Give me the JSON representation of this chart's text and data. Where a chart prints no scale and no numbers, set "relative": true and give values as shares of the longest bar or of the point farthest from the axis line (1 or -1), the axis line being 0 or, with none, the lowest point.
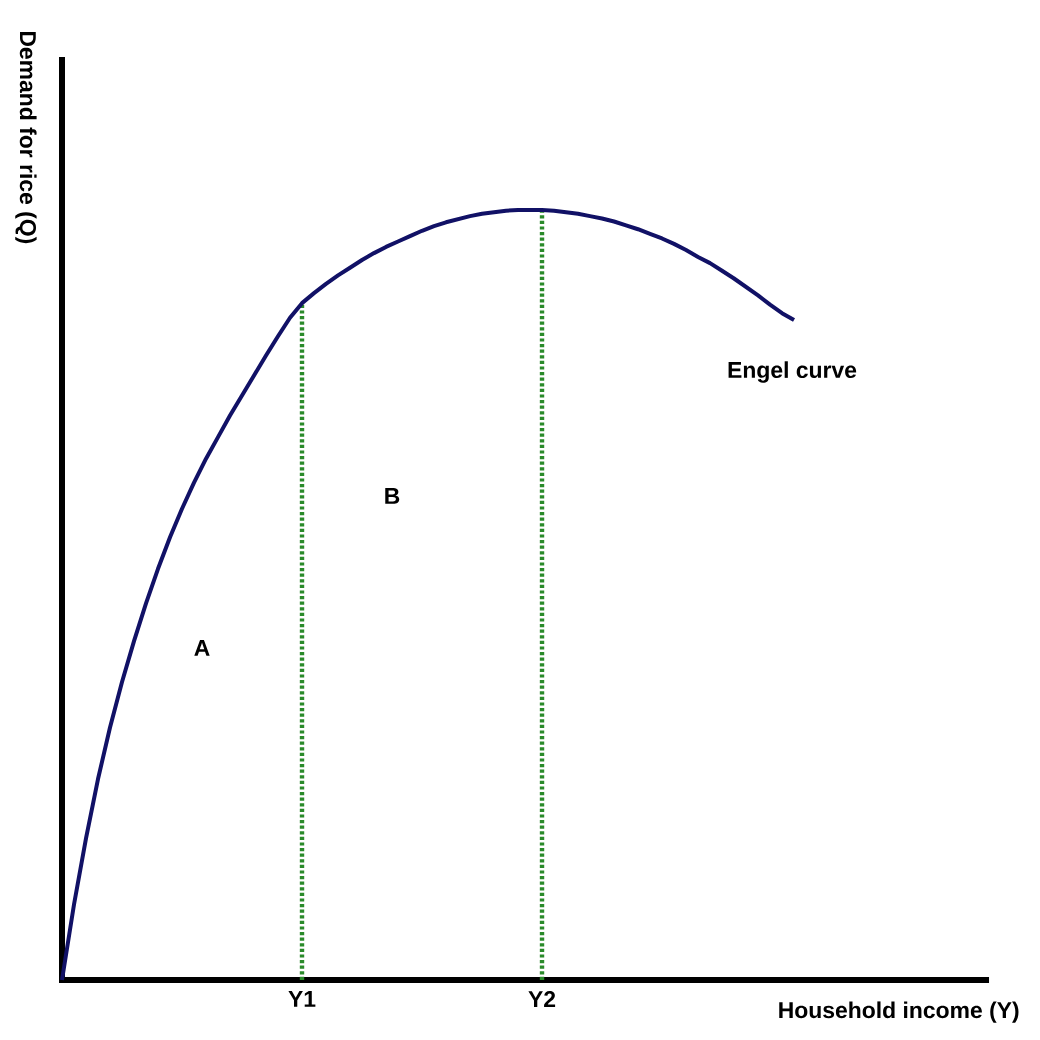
{
  "chart_data": {
    "type": "line",
    "xlabel": "Household income (Y)",
    "ylabel": "Demand for rice (Q)",
    "relative": true,
    "tick_labels": "x",
    "marker": "none",
    "line_style": "solid",
    "categories": [
      null,
      null,
      null,
      null,
      null,
      null,
      null,
      null,
      null,
      null,
      null,
      null,
      null,
      null,
      null,
      null,
      null,
      null,
      null,
      null,
      "Y1",
      null,
      null,
      null,
      null,
      null,
      null,
      null,
      null,
      null,
      null,
      null,
      null,
      null,
      null,
      null,
      null,
      null,
      null,
      null,
      "Y2",
      null,
      null,
      null,
      null,
      null,
      null,
      null,
      null,
      null,
      null,
      null,
      null,
      null,
      null,
      null,
      null,
      null,
      null,
      null,
      null,
      null,
      null,
      null,
      null,
      null,
      null,
      null,
      null,
      null,
      null,
      null,
      null,
      null,
      null,
      null,
      null,
      null
    ],
    "series": [
      {
        "color": "#111166",
        "values": [
          0,
          0.098,
          0.184,
          0.261,
          0.328,
          0.387,
          0.44,
          0.489,
          0.534,
          0.575,
          0.612,
          0.646,
          0.677,
          0.705,
          0.733,
          0.759,
          0.785,
          0.811,
          0.836,
          0.86,
          0.879,
          0.892,
          0.904,
          0.915,
          0.925,
          0.935,
          0.944,
          0.952,
          0.959,
          0.966,
          0.973,
          0.979,
          0.984,
          0.988,
          0.992,
          0.995,
          0.997,
          0.999,
          1,
          1,
          1,
          0.999,
          0.997,
          0.995,
          0.992,
          0.989,
          0.985,
          0.98,
          0.975,
          0.969,
          0.963,
          0.956,
          0.948,
          0.939,
          0.931,
          0.921,
          0.911,
          0.9,
          0.889,
          0.877,
          0.866,
          0.857,
          null,
          null,
          null,
          null,
          null,
          null,
          null,
          null,
          null,
          null,
          null,
          null,
          null,
          null,
          null,
          null
        ]
      }
    ],
    "ref_lines": [
      {
        "axis": "x",
        "value": "Y1",
        "color": "#2a8a2a",
        "line_style": "dotted"
      },
      {
        "axis": "x",
        "value": "Y2",
        "color": "#2a8a2a",
        "line_style": "dotted"
      }
    ],
    "annotations": [
      "Engel curve",
      "B",
      "A"
    ]
  }
}
